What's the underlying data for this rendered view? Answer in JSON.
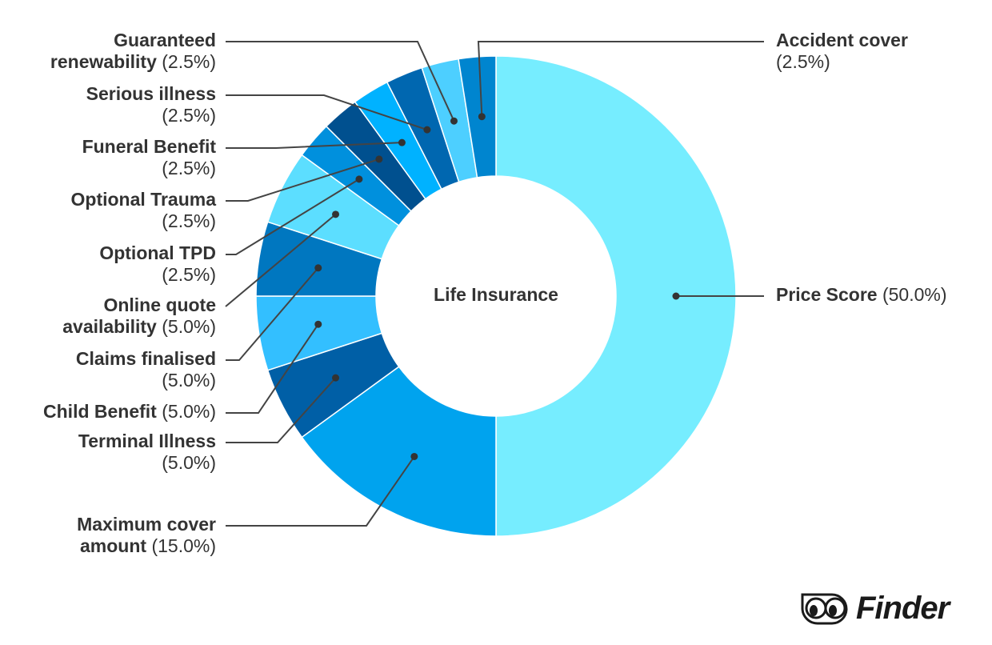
{
  "chart_data": {
    "type": "pie",
    "variant": "donut",
    "center_label": "Life Insurance",
    "slices": [
      {
        "name": "Price Score",
        "value": 50.0,
        "label": "(50.0%)",
        "color": "#76EDFF"
      },
      {
        "name": "Maximum cover amount",
        "value": 15.0,
        "label": "(15.0%)",
        "color": "#00A3EE"
      },
      {
        "name": "Terminal Illness",
        "value": 5.0,
        "label": "(5.0%)",
        "color": "#005FA6"
      },
      {
        "name": "Child Benefit",
        "value": 5.0,
        "label": "(5.0%)",
        "color": "#33BFFF"
      },
      {
        "name": "Claims finalised",
        "value": 5.0,
        "label": "(5.0%)",
        "color": "#0077C0"
      },
      {
        "name": "Online quote availability",
        "value": 5.0,
        "label": "(5.0%)",
        "color": "#5CDEFF"
      },
      {
        "name": "Optional TPD",
        "value": 2.5,
        "label": "(2.5%)",
        "color": "#0090DD"
      },
      {
        "name": "Optional Trauma",
        "value": 2.5,
        "label": "(2.5%)",
        "color": "#00508F"
      },
      {
        "name": "Funeral Benefit",
        "value": 2.5,
        "label": "(2.5%)",
        "color": "#00B2FF"
      },
      {
        "name": "Serious illness",
        "value": 2.5,
        "label": "(2.5%)",
        "color": "#0067B0"
      },
      {
        "name": "Guaranteed renewability",
        "value": 2.5,
        "label": "(2.5%)",
        "color": "#4DCFFF"
      },
      {
        "name": "Accident cover",
        "value": 2.5,
        "label": "(2.5%)",
        "color": "#0085CF"
      }
    ],
    "legend": "none"
  },
  "brand": {
    "logo_text": "Finder"
  }
}
